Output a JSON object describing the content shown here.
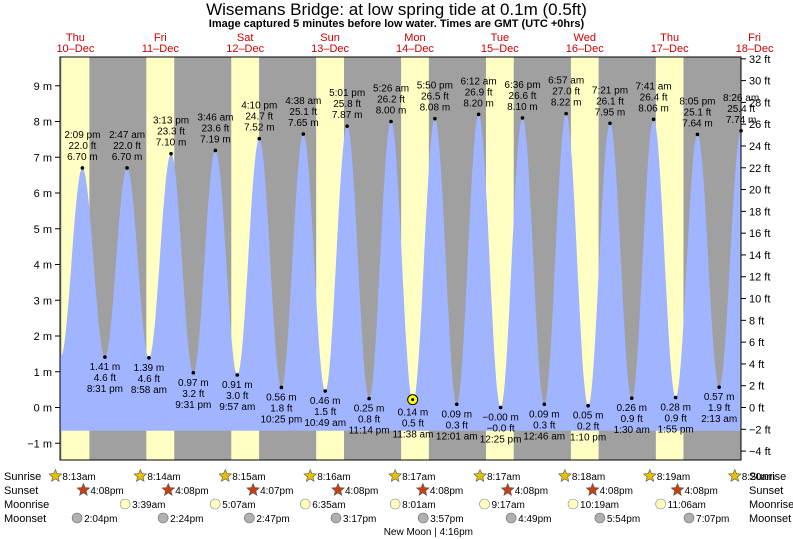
{
  "header": {
    "title": "Wisemans Bridge: at low  spring tide at 0.1m (0.5ft)",
    "subtitle": "Image captured 5 minutes before low water. Times are GMT (UTC +0hrs)"
  },
  "colors": {
    "night": "#a0a0a0",
    "day": "#ffffc4",
    "tide": "#a0b4ff",
    "date_label": "#cc0000",
    "sun": "#e8c000",
    "sunset_star": "#c84010",
    "moonrise": "#ffffc0",
    "moonset": "#b0b0b0",
    "current_marker": "#ffff00"
  },
  "days": [
    {
      "dow": "Thu",
      "date": "10–Dec"
    },
    {
      "dow": "Fri",
      "date": "11–Dec"
    },
    {
      "dow": "Sat",
      "date": "12–Dec"
    },
    {
      "dow": "Sun",
      "date": "13–Dec"
    },
    {
      "dow": "Mon",
      "date": "14–Dec"
    },
    {
      "dow": "Tue",
      "date": "15–Dec"
    },
    {
      "dow": "Wed",
      "date": "16–Dec"
    },
    {
      "dow": "Thu",
      "date": "17–Dec"
    },
    {
      "dow": "Fri",
      "date": "18–Dec"
    }
  ],
  "chart_data": {
    "type": "area",
    "title": "Wisemans Bridge: at low  spring tide at 0.1m (0.5ft)",
    "start_time_hours": 7.82,
    "end_time_hours": 200.4,
    "left_axis": {
      "unit": "m",
      "range": [
        -1.5,
        9.75
      ],
      "ticks": [
        -1,
        0,
        1,
        2,
        3,
        4,
        5,
        6,
        7,
        8,
        9
      ],
      "labels": [
        "−1 m",
        "0 m",
        "1 m",
        "2 m",
        "3 m",
        "4 m",
        "5 m",
        "6 m",
        "7 m",
        "8 m",
        "9 m"
      ]
    },
    "right_axis": {
      "unit": "ft",
      "ticks": [
        -4,
        -2,
        0,
        2,
        4,
        6,
        8,
        10,
        12,
        14,
        16,
        18,
        20,
        22,
        24,
        26,
        28,
        30,
        32
      ],
      "labels": [
        "−4 ft",
        "−2 ft",
        "0 ft",
        "2 ft",
        "4 ft",
        "6 ft",
        "8 ft",
        "10 ft",
        "12 ft",
        "14 ft",
        "16 ft",
        "18 ft",
        "20 ft",
        "22 ft",
        "24 ft",
        "26 ft",
        "28 ft",
        "30 ft",
        "32 ft"
      ]
    },
    "tides": [
      {
        "kind": "high",
        "t": 14.15,
        "m": 6.7,
        "time": "2:09 pm",
        "ft": "22.0 ft",
        "m_label": "6.70 m"
      },
      {
        "kind": "low",
        "t": 20.52,
        "m": 1.41,
        "time": "8:31 pm",
        "ft": "4.6 ft",
        "m_label": "1.41 m"
      },
      {
        "kind": "high",
        "t": 26.78,
        "m": 6.7,
        "time": "2:47 am",
        "ft": "22.0 ft",
        "m_label": "6.70 m"
      },
      {
        "kind": "low",
        "t": 32.97,
        "m": 1.39,
        "time": "8:58 am",
        "ft": "4.6 ft",
        "m_label": "1.39 m"
      },
      {
        "kind": "high",
        "t": 39.22,
        "m": 7.1,
        "time": "3:13 pm",
        "ft": "23.3 ft",
        "m_label": "7.10 m"
      },
      {
        "kind": "low",
        "t": 45.52,
        "m": 0.97,
        "time": "9:31 pm",
        "ft": "3.2 ft",
        "m_label": "0.97 m"
      },
      {
        "kind": "high",
        "t": 51.77,
        "m": 7.19,
        "time": "3:46 am",
        "ft": "23.6 ft",
        "m_label": "7.19 m"
      },
      {
        "kind": "low",
        "t": 57.95,
        "m": 0.91,
        "time": "9:57 am",
        "ft": "3.0 ft",
        "m_label": "0.91 m"
      },
      {
        "kind": "high",
        "t": 64.17,
        "m": 7.52,
        "time": "4:10 pm",
        "ft": "24.7 ft",
        "m_label": "7.52 m"
      },
      {
        "kind": "low",
        "t": 70.42,
        "m": 0.56,
        "time": "10:25 pm",
        "ft": "1.8 ft",
        "m_label": "0.56 m"
      },
      {
        "kind": "high",
        "t": 76.63,
        "m": 7.65,
        "time": "4:38 am",
        "ft": "25.1 ft",
        "m_label": "7.65 m"
      },
      {
        "kind": "low",
        "t": 82.82,
        "m": 0.46,
        "time": "10:49 am",
        "ft": "1.5 ft",
        "m_label": "0.46 m"
      },
      {
        "kind": "high",
        "t": 89.02,
        "m": 7.87,
        "time": "5:01 pm",
        "ft": "25.8 ft",
        "m_label": "7.87 m"
      },
      {
        "kind": "low",
        "t": 95.23,
        "m": 0.25,
        "time": "11:14 pm",
        "ft": "0.8 ft",
        "m_label": "0.25 m"
      },
      {
        "kind": "high",
        "t": 101.43,
        "m": 8.0,
        "time": "5:26 am",
        "ft": "26.2 ft",
        "m_label": "8.00 m"
      },
      {
        "kind": "low",
        "t": 107.63,
        "m": 0.14,
        "time": "11:38 am",
        "ft": "0.5 ft",
        "m_label": "0.14 m"
      },
      {
        "kind": "high",
        "t": 113.83,
        "m": 8.08,
        "time": "5:50 pm",
        "ft": "26.5 ft",
        "m_label": "8.08 m"
      },
      {
        "kind": "low",
        "t": 120.02,
        "m": 0.09,
        "time": "12:01 am",
        "ft": "0.3 ft",
        "m_label": "0.09 m"
      },
      {
        "kind": "high",
        "t": 126.2,
        "m": 8.2,
        "time": "6:12 am",
        "ft": "26.9 ft",
        "m_label": "8.20 m"
      },
      {
        "kind": "low",
        "t": 132.42,
        "m": -0.0,
        "time": "12:25 pm",
        "ft": "−0.0 ft",
        "m_label": "−0.00 m"
      },
      {
        "kind": "high",
        "t": 138.6,
        "m": 8.1,
        "time": "6:36 pm",
        "ft": "26.6 ft",
        "m_label": "8.10 m"
      },
      {
        "kind": "low",
        "t": 144.77,
        "m": 0.09,
        "time": "12:46 am",
        "ft": "0.3 ft",
        "m_label": "0.09 m"
      },
      {
        "kind": "high",
        "t": 150.95,
        "m": 8.22,
        "time": "6:57 am",
        "ft": "27.0 ft",
        "m_label": "8.22 m"
      },
      {
        "kind": "low",
        "t": 157.17,
        "m": 0.05,
        "time": "1:10 pm",
        "ft": "0.2 ft",
        "m_label": "0.05 m"
      },
      {
        "kind": "high",
        "t": 163.35,
        "m": 7.95,
        "time": "7:21 pm",
        "ft": "26.1 ft",
        "m_label": "7.95 m"
      },
      {
        "kind": "low",
        "t": 169.5,
        "m": 0.26,
        "time": "1:30 am",
        "ft": "0.9 ft",
        "m_label": "0.26 m"
      },
      {
        "kind": "high",
        "t": 175.68,
        "m": 8.06,
        "time": "7:41 am",
        "ft": "26.4 ft",
        "m_label": "8.06 m"
      },
      {
        "kind": "low",
        "t": 181.92,
        "m": 0.28,
        "time": "1:55 pm",
        "ft": "0.9 ft",
        "m_label": "0.28 m"
      },
      {
        "kind": "high",
        "t": 188.08,
        "m": 7.64,
        "time": "8:05 pm",
        "ft": "25.1 ft",
        "m_label": "7.64 m"
      },
      {
        "kind": "low",
        "t": 194.22,
        "m": 0.57,
        "time": "2:13 am",
        "ft": "1.9 ft",
        "m_label": "0.57 m"
      },
      {
        "kind": "high",
        "t": 200.43,
        "m": 7.74,
        "time": "8:26 am",
        "ft": "25.4 ft",
        "m_label": "7.74 m"
      }
    ],
    "current_time_hours": 107.55,
    "daylight": [
      {
        "rise": 8.22,
        "set": 16.13
      },
      {
        "rise": 32.23,
        "set": 40.13
      },
      {
        "rise": 56.25,
        "set": 64.12
      },
      {
        "rise": 80.27,
        "set": 88.13
      },
      {
        "rise": 104.28,
        "set": 112.13
      },
      {
        "rise": 128.28,
        "set": 136.13
      },
      {
        "rise": 152.3,
        "set": 160.13
      },
      {
        "rise": 176.32,
        "set": 184.13
      },
      {
        "rise": 200.33,
        "set": 208.13
      }
    ]
  },
  "almanac": {
    "row_labels": {
      "sunrise": "Sunrise",
      "sunset": "Sunset",
      "moonrise": "Moonrise",
      "moonset": "Moonset"
    },
    "sunrise": [
      {
        "t": 8.22,
        "label": "8:13am"
      },
      {
        "t": 32.23,
        "label": "8:14am"
      },
      {
        "t": 56.25,
        "label": "8:15am"
      },
      {
        "t": 80.27,
        "label": "8:16am"
      },
      {
        "t": 104.28,
        "label": "8:17am"
      },
      {
        "t": 128.28,
        "label": "8:17am"
      },
      {
        "t": 152.3,
        "label": "8:18am"
      },
      {
        "t": 176.32,
        "label": "8:19am"
      },
      {
        "t": 200.33,
        "label": "8:20am"
      }
    ],
    "sunset": [
      {
        "t": 16.13,
        "label": "4:08pm"
      },
      {
        "t": 40.13,
        "label": "4:08pm"
      },
      {
        "t": 64.12,
        "label": "4:07pm"
      },
      {
        "t": 88.13,
        "label": "4:08pm"
      },
      {
        "t": 112.13,
        "label": "4:08pm"
      },
      {
        "t": 136.13,
        "label": "4:08pm"
      },
      {
        "t": 160.13,
        "label": "4:08pm"
      },
      {
        "t": 184.13,
        "label": "4:08pm"
      }
    ],
    "moonrise": [
      {
        "t": 27.65,
        "label": "3:39am"
      },
      {
        "t": 53.12,
        "label": "5:07am"
      },
      {
        "t": 78.58,
        "label": "6:35am"
      },
      {
        "t": 104.02,
        "label": "8:01am"
      },
      {
        "t": 129.28,
        "label": "9:17am"
      },
      {
        "t": 154.32,
        "label": "10:19am"
      },
      {
        "t": 179.1,
        "label": "11:06am"
      }
    ],
    "moonset": [
      {
        "t": 14.07,
        "label": "2:04pm"
      },
      {
        "t": 38.4,
        "label": "2:24pm"
      },
      {
        "t": 62.78,
        "label": "2:47pm"
      },
      {
        "t": 87.28,
        "label": "3:17pm"
      },
      {
        "t": 111.95,
        "label": "3:57pm"
      },
      {
        "t": 136.82,
        "label": "4:49pm"
      },
      {
        "t": 161.9,
        "label": "5:54pm"
      },
      {
        "t": 187.12,
        "label": "7:07pm"
      }
    ],
    "moon_phase": {
      "t": 112.27,
      "label": "New Moon | 4:16pm"
    }
  }
}
